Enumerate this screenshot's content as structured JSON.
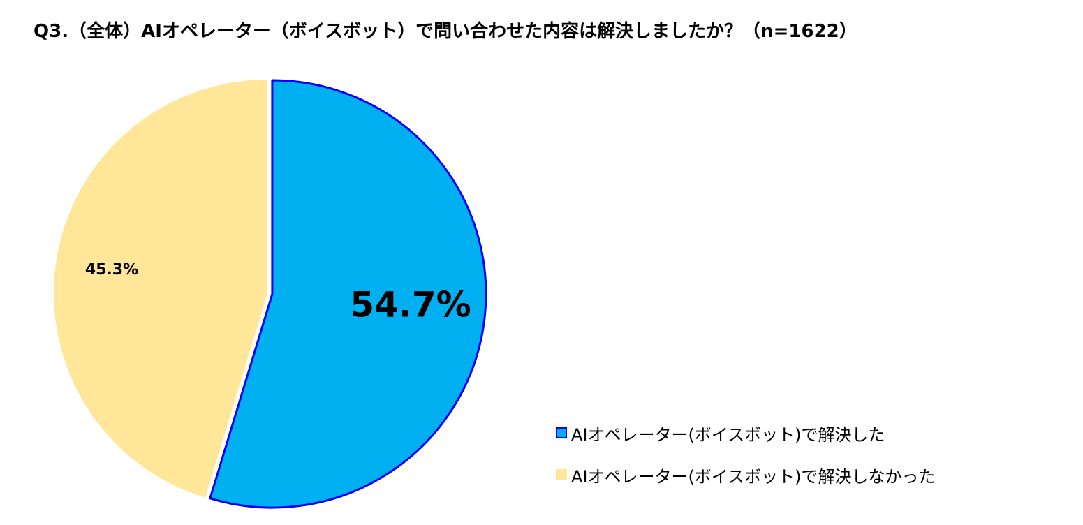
{
  "title": "Q3.（全体）AIオペレーター（ボイスボット）で問い合わせた内容は解決しましたか？（n=1622）",
  "chart_data": {
    "type": "pie",
    "title": "Q3.（全体）AIオペレーター（ボイスボット）で問い合わせた内容は解決しましたか？（n=1622）",
    "n": 1622,
    "legend_position": "bottom-right",
    "slices": [
      {
        "name": "AIオペレーター(ボイスボット)で解決した",
        "value": 54.7,
        "label": "54.7%",
        "color": "#00B0F0",
        "stroke": "#0000FF",
        "exploded": true
      },
      {
        "name": "AIオペレーター(ボイスボット)で解決しなかった",
        "value": 45.3,
        "label": "45.3%",
        "color": "#FFE699",
        "stroke": "",
        "exploded": false
      }
    ]
  }
}
